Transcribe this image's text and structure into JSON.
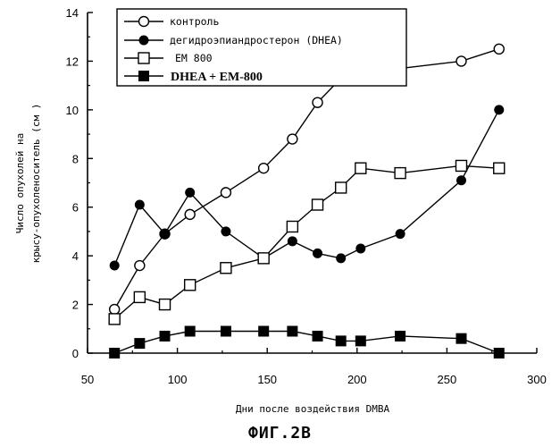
{
  "chart_data": {
    "type": "line",
    "title": "",
    "xlabel": "Дни после воздействия DMBA",
    "ylabel_line1": "Число опухолей на",
    "ylabel_line2": "крысу-опухоленоситель (см )",
    "xlim": [
      50,
      300
    ],
    "ylim": [
      0,
      14
    ],
    "x_ticks": [
      50,
      100,
      150,
      200,
      250,
      300
    ],
    "y_ticks": [
      0,
      2,
      4,
      6,
      8,
      10,
      12,
      14
    ],
    "grid": false,
    "legend_position": "top-left",
    "series": [
      {
        "name": "контроль",
        "marker": "open-circle",
        "x": [
          65,
          79,
          93,
          107,
          127,
          148,
          164,
          178,
          191,
          202,
          224,
          258,
          279
        ],
        "y": [
          1.8,
          3.6,
          4.9,
          5.7,
          6.6,
          7.6,
          8.8,
          10.3,
          11.3,
          11.5,
          11.7,
          12.0,
          12.5
        ]
      },
      {
        "name": "дегидроэпиандростерон (DHEA)",
        "marker": "filled-circle",
        "x": [
          65,
          79,
          93,
          107,
          127,
          148,
          164,
          178,
          191,
          202,
          224,
          258,
          279
        ],
        "y": [
          3.6,
          6.1,
          4.9,
          6.6,
          5.0,
          3.9,
          4.6,
          4.1,
          3.9,
          4.3,
          4.9,
          7.1,
          10.0
        ]
      },
      {
        "name": "EM 800",
        "marker": "open-square",
        "x": [
          65,
          79,
          93,
          107,
          127,
          148,
          164,
          178,
          191,
          202,
          224,
          258,
          279
        ],
        "y": [
          1.4,
          2.3,
          2.0,
          2.8,
          3.5,
          3.9,
          5.2,
          6.1,
          6.8,
          7.6,
          7.4,
          7.7,
          7.6
        ]
      },
      {
        "name": "DHEA + EM-800",
        "marker": "filled-square",
        "x": [
          65,
          79,
          93,
          107,
          127,
          148,
          164,
          178,
          191,
          202,
          224,
          258,
          279
        ],
        "y": [
          0.0,
          0.4,
          0.7,
          0.9,
          0.9,
          0.9,
          0.9,
          0.7,
          0.5,
          0.5,
          0.7,
          0.6,
          0.0
        ]
      }
    ]
  },
  "figure_caption": "ФИГ.2В"
}
